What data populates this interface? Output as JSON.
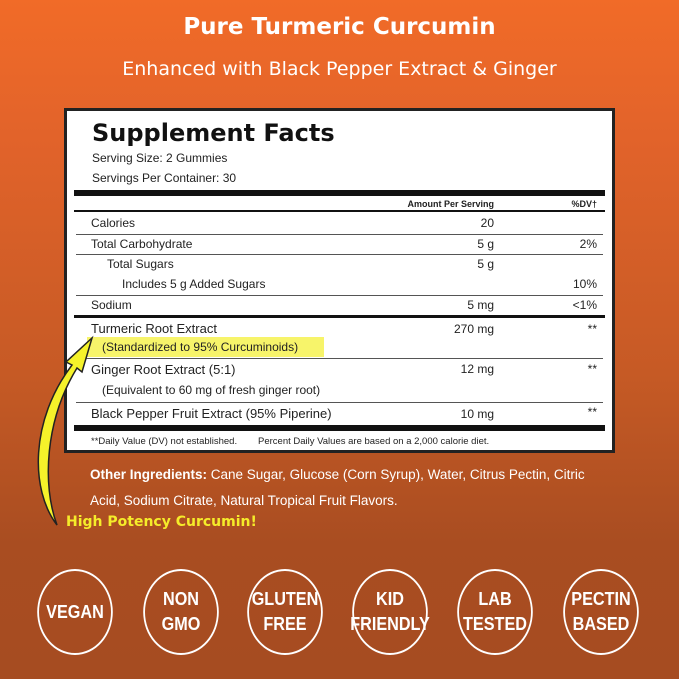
{
  "header": {
    "title": "Pure Turmeric Curcumin",
    "subtitle": "Enhanced with Black Pepper Extract & Ginger"
  },
  "facts": {
    "title": "Supplement Facts",
    "serving_size": "Serving Size:  2 Gummies",
    "servings_per_container": "Servings Per Container:  30",
    "col_amount": "Amount Per Serving",
    "col_dv": "%DV†",
    "rows": [
      {
        "name": "Calories",
        "amount": "20",
        "dv": ""
      },
      {
        "name": "Total Carbohydrate",
        "amount": "5 g",
        "dv": "2%"
      },
      {
        "name": "Total Sugars",
        "amount": "5 g",
        "dv": ""
      },
      {
        "name": "Includes 5 g Added Sugars",
        "amount": "",
        "dv": "10%"
      },
      {
        "name": "Sodium",
        "amount": "5 mg",
        "dv": "<1%"
      },
      {
        "name": "Turmeric Root Extract",
        "note": "(Standardized to 95% Curcuminoids)",
        "amount": "270 mg",
        "dv": "**"
      },
      {
        "name": "Ginger Root Extract (5:1)",
        "note": "(Equivalent to 60 mg of fresh ginger root)",
        "amount": "12 mg",
        "dv": "**"
      },
      {
        "name": "Black Pepper Fruit Extract (95% Piperine)",
        "amount": "10 mg",
        "dv": "**"
      }
    ],
    "footnote_left": "**Daily Value (DV) not established.",
    "footnote_right": "Percent Daily Values are based on a 2,000 calorie diet."
  },
  "ingredients": {
    "label": "Other Ingredients:",
    "text": " Cane Sugar, Glucose (Corn Syrup), Water, Citrus Pectin, Citric Acid, Sodium Citrate, Natural Tropical Fruit Flavors."
  },
  "callout": "High Potency Curcumin!",
  "badges": [
    {
      "l1": "VEGAN",
      "l2": ""
    },
    {
      "l1": "NON",
      "l2": "GMO"
    },
    {
      "l1": "GLUTEN",
      "l2": "FREE"
    },
    {
      "l1": "KID",
      "l2": "FRIENDLY"
    },
    {
      "l1": "LAB",
      "l2": "TESTED"
    },
    {
      "l1": "PECTIN",
      "l2": "BASED"
    }
  ],
  "colors": {
    "highlight": "#f7f46a",
    "callout": "#f5ec2a",
    "bg_top": "#f16b28",
    "bg_bottom": "#a64c21"
  }
}
